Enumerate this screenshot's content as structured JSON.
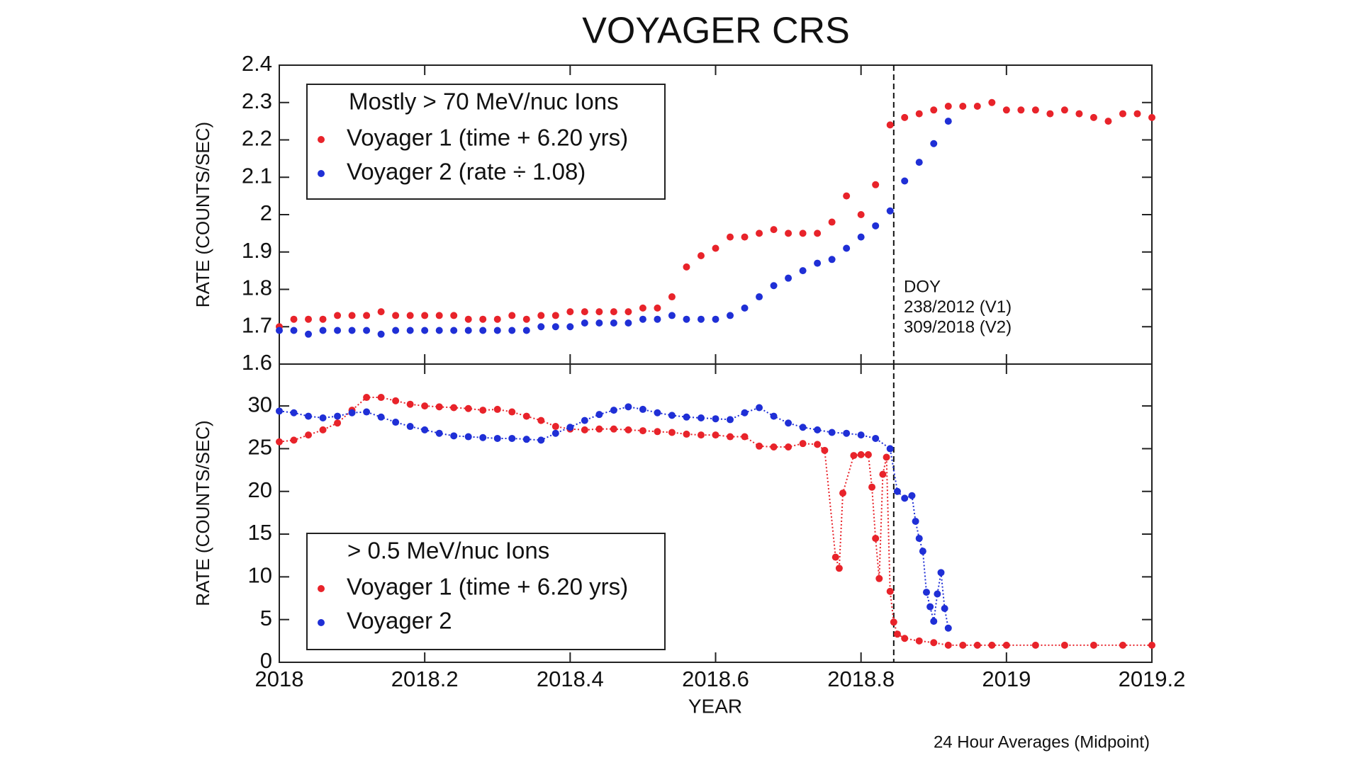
{
  "chart_data": [
    {
      "type": "scatter",
      "title": "VOYAGER CRS",
      "ylabel": "RATE (COUNTS/SEC)",
      "xlim": [
        2018,
        2019.2
      ],
      "ylim": [
        1.6,
        2.4
      ],
      "yticks": [
        1.6,
        1.7,
        1.8,
        1.9,
        2,
        2.1,
        2.2,
        2.3,
        2.4
      ],
      "legend_title": "Mostly > 70 MeV/nuc Ions",
      "legend": "upper-left",
      "dotted_lines": false,
      "vline": 2018.845,
      "annotation": [
        "DOY",
        "238/2012 (V1)",
        "309/2018 (V2)"
      ],
      "series": [
        {
          "name": "Voyager 1 (time + 6.20 yrs)",
          "color": "#e8232a",
          "x": [
            2018.0,
            2018.02,
            2018.04,
            2018.06,
            2018.08,
            2018.1,
            2018.12,
            2018.14,
            2018.16,
            2018.18,
            2018.2,
            2018.22,
            2018.24,
            2018.26,
            2018.28,
            2018.3,
            2018.32,
            2018.34,
            2018.36,
            2018.38,
            2018.4,
            2018.42,
            2018.44,
            2018.46,
            2018.48,
            2018.5,
            2018.52,
            2018.54,
            2018.56,
            2018.58,
            2018.6,
            2018.62,
            2018.64,
            2018.66,
            2018.68,
            2018.7,
            2018.72,
            2018.74,
            2018.76,
            2018.78,
            2018.8,
            2018.82,
            2018.84,
            2018.86,
            2018.88,
            2018.9,
            2018.92,
            2018.94,
            2018.96,
            2018.98,
            2019.0,
            2019.02,
            2019.04,
            2019.06,
            2019.08,
            2019.1,
            2019.12,
            2019.14,
            2019.16,
            2019.18,
            2019.2
          ],
          "values": [
            1.7,
            1.72,
            1.72,
            1.72,
            1.73,
            1.73,
            1.73,
            1.74,
            1.73,
            1.73,
            1.73,
            1.73,
            1.73,
            1.72,
            1.72,
            1.72,
            1.73,
            1.72,
            1.73,
            1.73,
            1.74,
            1.74,
            1.74,
            1.74,
            1.74,
            1.75,
            1.75,
            1.78,
            1.86,
            1.89,
            1.91,
            1.94,
            1.94,
            1.95,
            1.96,
            1.95,
            1.95,
            1.95,
            1.98,
            2.05,
            2.0,
            2.08,
            2.24,
            2.26,
            2.27,
            2.28,
            2.29,
            2.29,
            2.29,
            2.3,
            2.28,
            2.28,
            2.28,
            2.27,
            2.28,
            2.27,
            2.26,
            2.25,
            2.27,
            2.27,
            2.26
          ]
        },
        {
          "name": "Voyager 2 (rate ÷ 1.08)",
          "color": "#1f2fd6",
          "x": [
            2018.0,
            2018.02,
            2018.04,
            2018.06,
            2018.08,
            2018.1,
            2018.12,
            2018.14,
            2018.16,
            2018.18,
            2018.2,
            2018.22,
            2018.24,
            2018.26,
            2018.28,
            2018.3,
            2018.32,
            2018.34,
            2018.36,
            2018.38,
            2018.4,
            2018.42,
            2018.44,
            2018.46,
            2018.48,
            2018.5,
            2018.52,
            2018.54,
            2018.56,
            2018.58,
            2018.6,
            2018.62,
            2018.64,
            2018.66,
            2018.68,
            2018.7,
            2018.72,
            2018.74,
            2018.76,
            2018.78,
            2018.8,
            2018.82,
            2018.84,
            2018.86,
            2018.88,
            2018.9,
            2018.92
          ],
          "values": [
            1.69,
            1.69,
            1.68,
            1.69,
            1.69,
            1.69,
            1.69,
            1.68,
            1.69,
            1.69,
            1.69,
            1.69,
            1.69,
            1.69,
            1.69,
            1.69,
            1.69,
            1.69,
            1.7,
            1.7,
            1.7,
            1.71,
            1.71,
            1.71,
            1.71,
            1.72,
            1.72,
            1.73,
            1.72,
            1.72,
            1.72,
            1.73,
            1.75,
            1.78,
            1.81,
            1.83,
            1.85,
            1.87,
            1.88,
            1.91,
            1.94,
            1.97,
            2.01,
            2.09,
            2.14,
            2.19,
            2.25
          ]
        }
      ]
    },
    {
      "type": "scatter",
      "ylabel": "RATE (COUNTS/SEC)",
      "xlabel": "YEAR",
      "note": "24 Hour Averages (Midpoint)",
      "xlim": [
        2018,
        2019.2
      ],
      "xticks": [
        2018,
        2018.2,
        2018.4,
        2018.6,
        2018.8,
        2019,
        2019.2
      ],
      "ylim": [
        0,
        34.9
      ],
      "yticks": [
        0,
        5,
        10,
        15,
        20,
        25,
        30
      ],
      "legend_title": "> 0.5 MeV/nuc Ions",
      "legend": "lower-left",
      "dotted_lines": true,
      "vline": 2018.845,
      "series": [
        {
          "name": "Voyager 1 (time + 6.20 yrs)",
          "color": "#e8232a",
          "x": [
            2018.0,
            2018.02,
            2018.04,
            2018.06,
            2018.08,
            2018.1,
            2018.12,
            2018.14,
            2018.16,
            2018.18,
            2018.2,
            2018.22,
            2018.24,
            2018.26,
            2018.28,
            2018.3,
            2018.32,
            2018.34,
            2018.36,
            2018.38,
            2018.4,
            2018.42,
            2018.44,
            2018.46,
            2018.48,
            2018.5,
            2018.52,
            2018.54,
            2018.56,
            2018.58,
            2018.6,
            2018.62,
            2018.64,
            2018.66,
            2018.68,
            2018.7,
            2018.72,
            2018.74,
            2018.75,
            2018.765,
            2018.77,
            2018.775,
            2018.79,
            2018.8,
            2018.81,
            2018.815,
            2018.82,
            2018.825,
            2018.83,
            2018.835,
            2018.84,
            2018.845,
            2018.85,
            2018.86,
            2018.88,
            2018.9,
            2018.92,
            2018.94,
            2018.96,
            2018.98,
            2019.0,
            2019.04,
            2019.08,
            2019.12,
            2019.16,
            2019.2
          ],
          "values": [
            25.8,
            26.0,
            26.6,
            27.2,
            28.0,
            29.5,
            31.0,
            31.0,
            30.6,
            30.2,
            30.0,
            29.9,
            29.8,
            29.7,
            29.5,
            29.6,
            29.3,
            28.8,
            28.3,
            27.6,
            27.3,
            27.2,
            27.3,
            27.3,
            27.2,
            27.1,
            27.0,
            26.9,
            26.7,
            26.6,
            26.6,
            26.4,
            26.4,
            25.3,
            25.2,
            25.2,
            25.6,
            25.5,
            24.8,
            12.3,
            11.0,
            19.8,
            24.2,
            24.3,
            24.3,
            20.5,
            14.5,
            9.8,
            22.0,
            24.0,
            8.3,
            4.7,
            3.3,
            2.8,
            2.5,
            2.3,
            2.0,
            2.0,
            2.0,
            2.0,
            2.0,
            2.0,
            2.0,
            2.0,
            2.0,
            2.0
          ]
        },
        {
          "name": "Voyager 2",
          "color": "#1f2fd6",
          "x": [
            2018.0,
            2018.02,
            2018.04,
            2018.06,
            2018.08,
            2018.1,
            2018.12,
            2018.14,
            2018.16,
            2018.18,
            2018.2,
            2018.22,
            2018.24,
            2018.26,
            2018.28,
            2018.3,
            2018.32,
            2018.34,
            2018.36,
            2018.38,
            2018.4,
            2018.42,
            2018.44,
            2018.46,
            2018.48,
            2018.5,
            2018.52,
            2018.54,
            2018.56,
            2018.58,
            2018.6,
            2018.62,
            2018.64,
            2018.66,
            2018.68,
            2018.7,
            2018.72,
            2018.74,
            2018.76,
            2018.78,
            2018.8,
            2018.82,
            2018.84,
            2018.85,
            2018.86,
            2018.87,
            2018.875,
            2018.88,
            2018.885,
            2018.89,
            2018.895,
            2018.9,
            2018.905,
            2018.91,
            2018.915,
            2018.92
          ],
          "values": [
            29.4,
            29.2,
            28.8,
            28.6,
            28.8,
            29.2,
            29.3,
            28.7,
            28.1,
            27.6,
            27.2,
            26.8,
            26.5,
            26.4,
            26.3,
            26.2,
            26.2,
            26.1,
            26.0,
            26.8,
            27.5,
            28.3,
            29.0,
            29.5,
            29.9,
            29.6,
            29.2,
            28.9,
            28.7,
            28.6,
            28.5,
            28.4,
            29.2,
            29.8,
            28.8,
            28.0,
            27.5,
            27.2,
            26.9,
            26.8,
            26.6,
            26.2,
            25.0,
            20.0,
            19.2,
            19.5,
            16.5,
            14.5,
            13.0,
            8.2,
            6.5,
            4.8,
            8.0,
            10.5,
            6.3,
            4.0
          ]
        }
      ]
    }
  ]
}
